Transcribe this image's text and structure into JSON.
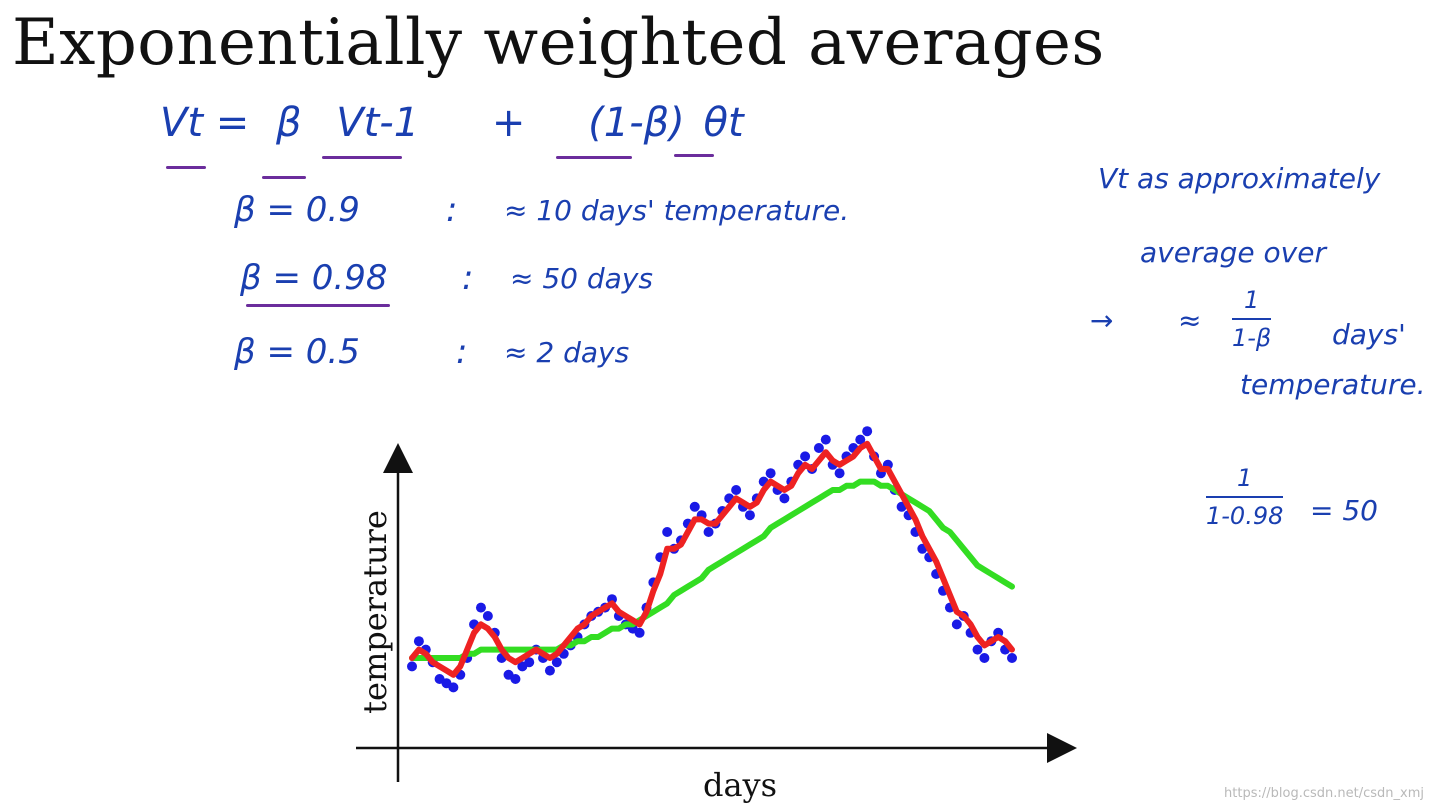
{
  "title": "Exponentially weighted averages",
  "equation": {
    "lhs": "Vt =",
    "beta": "β",
    "v_prev": "Vt-1",
    "plus": "+",
    "one_minus_beta": "(1-β)",
    "theta": "θt"
  },
  "beta_examples": [
    {
      "beta": "β = 0.9",
      "sep": ":",
      "note": "≈ 10 days' temperature."
    },
    {
      "beta": "β = 0.98",
      "sep": ":",
      "note": "≈ 50 days"
    },
    {
      "beta": "β = 0.5",
      "sep": ":",
      "note": "≈ 2 days"
    }
  ],
  "side_note": {
    "line1": "Vt as approximately",
    "line2": "average over",
    "arrow": "→",
    "approx": "≈",
    "frac_num": "1",
    "frac_den": "1-β",
    "days": "days'",
    "line4": "temperature."
  },
  "calc": {
    "num": "1",
    "den": "1-0.98",
    "result": "= 50"
  },
  "chart_data": {
    "type": "scatter",
    "xlabel": "days",
    "ylabel": "temperature",
    "colors": {
      "points": "#1a1ae6",
      "red_line": "#ee2222",
      "green_line": "#33dd22"
    },
    "points_y": [
      8,
      14,
      12,
      9,
      5,
      4,
      3,
      6,
      10,
      18,
      22,
      20,
      16,
      10,
      6,
      5,
      8,
      9,
      12,
      10,
      7,
      9,
      11,
      13,
      15,
      18,
      20,
      21,
      22,
      24,
      20,
      18,
      17,
      16,
      22,
      28,
      34,
      40,
      36,
      38,
      42,
      46,
      44,
      40,
      42,
      45,
      48,
      50,
      46,
      44,
      48,
      52,
      54,
      50,
      48,
      52,
      56,
      58,
      55,
      60,
      62,
      56,
      54,
      58,
      60,
      62,
      64,
      58,
      54,
      56,
      50,
      46,
      44,
      40,
      36,
      34,
      30,
      26,
      22,
      18,
      20,
      16,
      12,
      10,
      14,
      16,
      12,
      10
    ],
    "red_line": [
      10,
      12,
      11,
      9,
      8,
      7,
      6,
      8,
      12,
      16,
      18,
      17,
      15,
      12,
      10,
      9,
      10,
      11,
      12,
      11,
      10,
      11,
      13,
      15,
      17,
      18,
      20,
      21,
      22,
      23,
      21,
      20,
      19,
      18,
      21,
      26,
      30,
      36,
      36,
      37,
      40,
      43,
      43,
      42,
      42,
      44,
      46,
      48,
      47,
      46,
      47,
      50,
      52,
      51,
      50,
      51,
      54,
      56,
      55,
      57,
      59,
      57,
      56,
      57,
      58,
      60,
      61,
      58,
      55,
      55,
      52,
      49,
      46,
      43,
      39,
      36,
      33,
      29,
      25,
      21,
      20,
      18,
      15,
      13,
      14,
      15,
      14,
      12
    ],
    "green_line": [
      10,
      10,
      10,
      10,
      10,
      10,
      10,
      10,
      11,
      11,
      12,
      12,
      12,
      12,
      12,
      12,
      12,
      12,
      12,
      12,
      12,
      12,
      13,
      13,
      14,
      14,
      15,
      15,
      16,
      17,
      17,
      18,
      18,
      19,
      20,
      21,
      22,
      23,
      25,
      26,
      27,
      28,
      29,
      31,
      32,
      33,
      34,
      35,
      36,
      37,
      38,
      39,
      41,
      42,
      43,
      44,
      45,
      46,
      47,
      48,
      49,
      50,
      50,
      51,
      51,
      52,
      52,
      52,
      51,
      51,
      50,
      49,
      48,
      47,
      46,
      45,
      43,
      41,
      40,
      38,
      36,
      34,
      32,
      31,
      30,
      29,
      28,
      27
    ]
  }
}
